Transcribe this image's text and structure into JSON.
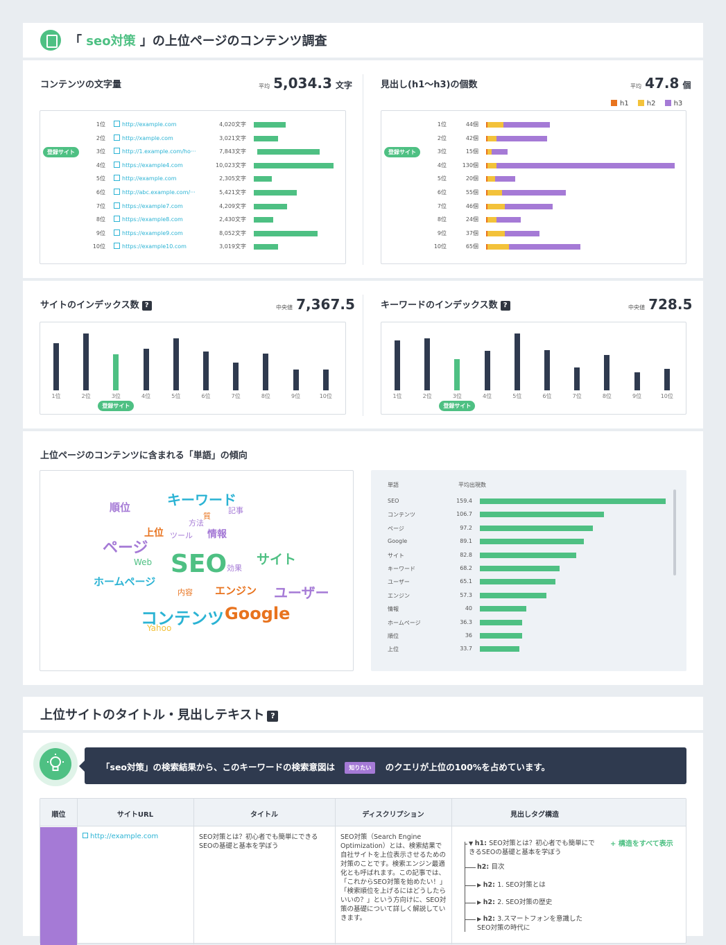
{
  "header": {
    "title_open": "「",
    "keyword": "seo対策",
    "title_rest": "」の上位ページのコンテンツ調査"
  },
  "colors": {
    "green": "#4ec083",
    "navy": "#2f3a4f",
    "h1": "#e8731e",
    "h2": "#f3c23a",
    "h3": "#a57ad6",
    "cyan": "#2bb3d4"
  },
  "registered_label": "登録サイト",
  "word_count": {
    "title": "コンテンツの文字量",
    "avg_label": "平均",
    "avg_value": "5,034.3",
    "unit": "文字",
    "rows": [
      {
        "rank": "1位",
        "url": "http://example.com",
        "count_label": "4,020文字",
        "count": 4020
      },
      {
        "rank": "2位",
        "url": "http://xample.com",
        "count_label": "3,021文字",
        "count": 3021
      },
      {
        "rank": "3位",
        "url": "http://1.example.com/ho···",
        "count_label": "7,843文字",
        "count": 7843
      },
      {
        "rank": "4位",
        "url": "https://example4.com",
        "count_label": "10,023文字",
        "count": 10023
      },
      {
        "rank": "5位",
        "url": "http://example.com",
        "count_label": "2,305文字",
        "count": 2305
      },
      {
        "rank": "6位",
        "url": "http://abc.example.com/···",
        "count_label": "5,421文字",
        "count": 5421
      },
      {
        "rank": "7位",
        "url": "https://example7.com",
        "count_label": "4,209文字",
        "count": 4209
      },
      {
        "rank": "8位",
        "url": "https://example8.com",
        "count_label": "2,430文字",
        "count": 2430
      },
      {
        "rank": "9位",
        "url": "https://example9.com",
        "count_label": "8,052文字",
        "count": 8052
      },
      {
        "rank": "10位",
        "url": "https://example10.com",
        "count_label": "3,019文字",
        "count": 3019
      }
    ]
  },
  "headings": {
    "title": "見出し(h1〜h3)の個数",
    "avg_label": "平均",
    "avg_value": "47.8",
    "unit": "個",
    "legend": [
      "h1",
      "h2",
      "h3"
    ],
    "rows": [
      {
        "rank": "1位",
        "label": "44個",
        "h1": 1,
        "h2": 11,
        "h3": 32
      },
      {
        "rank": "2位",
        "label": "42個",
        "h1": 1,
        "h2": 6,
        "h3": 35
      },
      {
        "rank": "3位",
        "label": "15個",
        "h1": 1,
        "h2": 3,
        "h3": 11
      },
      {
        "rank": "4位",
        "label": "130個",
        "h1": 1,
        "h2": 6,
        "h3": 123
      },
      {
        "rank": "5位",
        "label": "20個",
        "h1": 1,
        "h2": 5,
        "h3": 14
      },
      {
        "rank": "6位",
        "label": "55個",
        "h1": 1,
        "h2": 10,
        "h3": 44
      },
      {
        "rank": "7位",
        "label": "46個",
        "h1": 1,
        "h2": 12,
        "h3": 33
      },
      {
        "rank": "8位",
        "label": "24個",
        "h1": 1,
        "h2": 6,
        "h3": 17
      },
      {
        "rank": "9位",
        "label": "37個",
        "h1": 1,
        "h2": 12,
        "h3": 24
      },
      {
        "rank": "10位",
        "label": "65個",
        "h1": 1,
        "h2": 15,
        "h3": 49
      }
    ]
  },
  "site_index": {
    "title": "サイトのインデックス数",
    "median_label": "中央値",
    "median_value": "7,367.5",
    "ticks": [
      "1位",
      "2位",
      "3位",
      "4位",
      "5位",
      "6位",
      "7位",
      "8位",
      "9位",
      "10位"
    ],
    "values": [
      68,
      82,
      52,
      60,
      75,
      56,
      40,
      53,
      30,
      30
    ],
    "highlight_index": 2
  },
  "keyword_index": {
    "title": "キーワードのインデックス数",
    "median_label": "中央値",
    "median_value": "728.5",
    "ticks": [
      "1位",
      "2位",
      "3位",
      "4位",
      "5位",
      "6位",
      "7位",
      "8位",
      "9位",
      "10位"
    ],
    "values": [
      72,
      75,
      45,
      57,
      82,
      58,
      33,
      51,
      26,
      31
    ],
    "highlight_index": 2
  },
  "words": {
    "title": "上位ページのコンテンツに含まれる「単語」の傾向",
    "cloud": [
      {
        "text": "順位",
        "color": "#a57ad6"
      },
      {
        "text": "キーワード",
        "color": "#2bb3d4"
      },
      {
        "text": "記事",
        "color": "#a57ad6"
      },
      {
        "text": "質",
        "color": "#e8731e"
      },
      {
        "text": "方法",
        "color": "#a57ad6"
      },
      {
        "text": "上位",
        "color": "#e8731e"
      },
      {
        "text": "ツール",
        "color": "#a57ad6"
      },
      {
        "text": "情報",
        "color": "#a57ad6"
      },
      {
        "text": "ページ",
        "color": "#a57ad6"
      },
      {
        "text": "Web",
        "color": "#4ec083"
      },
      {
        "text": "SEO",
        "color": "#4ec083"
      },
      {
        "text": "効果",
        "color": "#a57ad6"
      },
      {
        "text": "サイト",
        "color": "#4ec083"
      },
      {
        "text": "ホームページ",
        "color": "#2bb3d4"
      },
      {
        "text": "内容",
        "color": "#e8731e"
      },
      {
        "text": "エンジン",
        "color": "#e8731e"
      },
      {
        "text": "ユーザー",
        "color": "#a57ad6"
      },
      {
        "text": "コンテンツ",
        "color": "#2bb3d4"
      },
      {
        "text": "Google",
        "color": "#e8731e"
      },
      {
        "text": "Yahoo",
        "color": "#f3c23a"
      }
    ],
    "table_header_word": "単語",
    "table_header_avg": "平均出現数",
    "table": [
      {
        "word": "SEO",
        "label": "159.4",
        "value": 159.4
      },
      {
        "word": "コンテンツ",
        "label": "106.7",
        "value": 106.7
      },
      {
        "word": "ページ",
        "label": "97.2",
        "value": 97.2
      },
      {
        "word": "Google",
        "label": "89.1",
        "value": 89.1
      },
      {
        "word": "サイト",
        "label": "82.8",
        "value": 82.8
      },
      {
        "word": "キーワード",
        "label": "68.2",
        "value": 68.2
      },
      {
        "word": "ユーザー",
        "label": "65.1",
        "value": 65.1
      },
      {
        "word": "エンジン",
        "label": "57.3",
        "value": 57.3
      },
      {
        "word": "情報",
        "label": "40",
        "value": 40
      },
      {
        "word": "ホームページ",
        "label": "36.3",
        "value": 36.3
      },
      {
        "word": "順位",
        "label": "36",
        "value": 36
      },
      {
        "word": "上位",
        "label": "33.7",
        "value": 33.7
      }
    ]
  },
  "titles_section": {
    "title": "上位サイトのタイトル・見出しテキスト",
    "banner_pre": "「seo対策」の検索結果から、このキーワードの検索意図は",
    "banner_tag": "知りたい",
    "banner_post": "のクエリが上位の100%を占めています。",
    "columns": [
      "順位",
      "サイトURL",
      "タイトル",
      "ディスクリプション",
      "見出しタグ構造"
    ],
    "row": {
      "url": "http://example.com",
      "title": "SEO対策とは？初心者でも簡単にできるSEOの基礎と基本を学ぼう",
      "description": "SEO対策（Search Engine Optimization）とは、検索結果で自社サイトを上位表示させるための対策のことです。検索エンジン最適化とも呼ばれます。この記事では、「これからSEO対策を始めたい！」「検索順位を上げるにはどうしたらいいの？」という方向けに、SEO対策の基礎について詳しく解説していきます。",
      "expand_all": "+ 構造をすべて表示",
      "tree": [
        {
          "tag": "h1:",
          "text": "SEO対策とは？初心者でも簡単にできるSEOの基礎と基本を学ぼう"
        },
        {
          "tag": "h2:",
          "text": "目次"
        },
        {
          "tag": "h2:",
          "text": "1. SEO対策とは"
        },
        {
          "tag": "h2:",
          "text": "2. SEO対策の歴史"
        },
        {
          "tag": "h2:",
          "text": "3.スマートフォンを意識したSEO対策の時代に"
        }
      ]
    }
  }
}
